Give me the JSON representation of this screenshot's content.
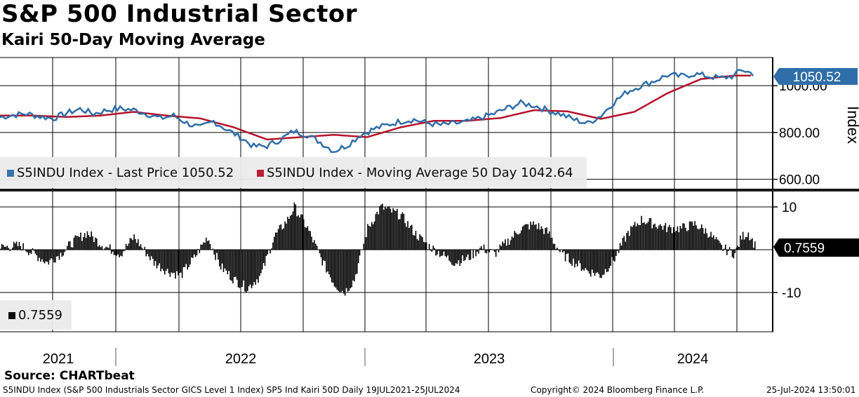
{
  "title": "S&P 500 Industrial Sector",
  "subtitle": "Kairi 50-Day Moving Average",
  "source": "Source: CHARTbeat",
  "footer": {
    "left": "S5INDU Index (S&P 500 Industrials Sector GICS Level 1 Index) SP5 Ind Kairi 50D  Daily 19JUL2021-25JUL2024",
    "center": "Copyright© 2024 Bloomberg Finance L.P.",
    "right": "25-Jul-2024 13:50:01"
  },
  "colors": {
    "price": "#2f6ea8",
    "ma": "#b5122b",
    "kairi": "#000000",
    "grid": "#000000"
  },
  "chart_data": [
    {
      "type": "line",
      "title": "S&P 500 Industrial Sector",
      "ylabel": "Index",
      "ylim": [
        560,
        1120
      ],
      "yticks": [
        600,
        800,
        1000
      ],
      "ytick_labels": [
        "600.00",
        "800.00",
        "1000.00"
      ],
      "x_labels": [
        "2021",
        "2022",
        "2023",
        "2024"
      ],
      "x_range": [
        "19JUL2021",
        "25JUL2024"
      ],
      "series": [
        {
          "name": "S5INDU Index - Last Price",
          "legend": "S5INDU Index - Last Price 1050.52",
          "last": "1050.52",
          "points": [
            [
              0,
              865
            ],
            [
              0.2,
              875
            ],
            [
              0.4,
              880
            ],
            [
              0.6,
              868
            ],
            [
              0.8,
              860
            ],
            [
              1.0,
              883
            ],
            [
              1.2,
              900
            ],
            [
              1.4,
              880
            ],
            [
              1.6,
              895
            ],
            [
              1.8,
              902
            ],
            [
              2.0,
              896
            ],
            [
              2.2,
              880
            ],
            [
              2.4,
              860
            ],
            [
              2.6,
              872
            ],
            [
              2.8,
              840
            ],
            [
              3.0,
              820
            ],
            [
              3.2,
              848
            ],
            [
              3.4,
              812
            ],
            [
              3.6,
              780
            ],
            [
              3.8,
              740
            ],
            [
              4.0,
              742
            ],
            [
              4.2,
              770
            ],
            [
              4.4,
              805
            ],
            [
              4.6,
              790
            ],
            [
              4.8,
              758
            ],
            [
              5.0,
              720
            ],
            [
              5.2,
              745
            ],
            [
              5.4,
              790
            ],
            [
              5.6,
              815
            ],
            [
              5.8,
              832
            ],
            [
              6.0,
              848
            ],
            [
              6.2,
              855
            ],
            [
              6.4,
              840
            ],
            [
              6.6,
              832
            ],
            [
              6.8,
              838
            ],
            [
              7.0,
              845
            ],
            [
              7.2,
              862
            ],
            [
              7.4,
              880
            ],
            [
              7.6,
              904
            ],
            [
              7.8,
              925
            ],
            [
              8.0,
              915
            ],
            [
              8.2,
              895
            ],
            [
              8.4,
              878
            ],
            [
              8.6,
              855
            ],
            [
              8.8,
              838
            ],
            [
              9.0,
              872
            ],
            [
              9.2,
              930
            ],
            [
              9.4,
              975
            ],
            [
              9.6,
              1000
            ],
            [
              9.8,
              1020
            ],
            [
              10.0,
              1045
            ],
            [
              10.2,
              1040
            ],
            [
              10.4,
              1050
            ],
            [
              10.6,
              1040
            ],
            [
              10.8,
              1032
            ],
            [
              11.0,
              1042
            ],
            [
              11.1,
              1070
            ],
            [
              11.2,
              1058
            ],
            [
              11.3,
              1050
            ]
          ]
        },
        {
          "name": "S5INDU Index - Moving Average 50 Day",
          "legend": "S5INDU Index - Moving Average 50 Day 1042.64",
          "last": "1042.64",
          "points": [
            [
              0,
              872
            ],
            [
              0.5,
              872
            ],
            [
              1.0,
              866
            ],
            [
              1.5,
              872
            ],
            [
              2.0,
              888
            ],
            [
              2.5,
              872
            ],
            [
              3.0,
              860
            ],
            [
              3.5,
              822
            ],
            [
              4.0,
              770
            ],
            [
              4.5,
              780
            ],
            [
              5.0,
              790
            ],
            [
              5.5,
              780
            ],
            [
              6.0,
              822
            ],
            [
              6.5,
              850
            ],
            [
              7.0,
              850
            ],
            [
              7.5,
              862
            ],
            [
              8.0,
              895
            ],
            [
              8.5,
              890
            ],
            [
              9.0,
              858
            ],
            [
              9.5,
              888
            ],
            [
              10.0,
              968
            ],
            [
              10.5,
              1028
            ],
            [
              11.0,
              1043
            ],
            [
              11.3,
              1043
            ]
          ]
        }
      ]
    },
    {
      "type": "bar",
      "title": "Kairi 50-Day Moving Average",
      "ylim": [
        -19,
        13
      ],
      "yticks": [
        10,
        -10
      ],
      "ytick_labels": [
        "10",
        "-10"
      ],
      "legend": "0.7559",
      "last": "0.7559",
      "points": [
        [
          0,
          0.5
        ],
        [
          0.3,
          1
        ],
        [
          0.5,
          -1
        ],
        [
          0.7,
          -3
        ],
        [
          0.9,
          -1
        ],
        [
          1.1,
          2
        ],
        [
          1.3,
          4
        ],
        [
          1.45,
          2
        ],
        [
          1.6,
          0.5
        ],
        [
          1.8,
          -1
        ],
        [
          2.0,
          3
        ],
        [
          2.1,
          1
        ],
        [
          2.3,
          -3
        ],
        [
          2.5,
          -5
        ],
        [
          2.7,
          -6
        ],
        [
          2.9,
          -2
        ],
        [
          3.1,
          3
        ],
        [
          3.3,
          -4
        ],
        [
          3.5,
          -7
        ],
        [
          3.7,
          -9
        ],
        [
          3.9,
          -6
        ],
        [
          4.1,
          3
        ],
        [
          4.3,
          7
        ],
        [
          4.4,
          10
        ],
        [
          4.6,
          5
        ],
        [
          4.8,
          -2
        ],
        [
          5.0,
          -8
        ],
        [
          5.15,
          -10
        ],
        [
          5.3,
          -7
        ],
        [
          5.5,
          5
        ],
        [
          5.7,
          10
        ],
        [
          5.85,
          9
        ],
        [
          6.0,
          8
        ],
        [
          6.2,
          4
        ],
        [
          6.4,
          1
        ],
        [
          6.6,
          -1
        ],
        [
          6.8,
          -3
        ],
        [
          7.0,
          -2
        ],
        [
          7.2,
          0.5
        ],
        [
          7.4,
          -1
        ],
        [
          7.6,
          2
        ],
        [
          7.8,
          5
        ],
        [
          8.0,
          6
        ],
        [
          8.2,
          4
        ],
        [
          8.4,
          -1
        ],
        [
          8.6,
          -3
        ],
        [
          8.8,
          -5
        ],
        [
          9.0,
          -6
        ],
        [
          9.2,
          -2
        ],
        [
          9.4,
          4
        ],
        [
          9.6,
          7
        ],
        [
          9.8,
          6
        ],
        [
          10.0,
          5
        ],
        [
          10.2,
          5
        ],
        [
          10.4,
          6
        ],
        [
          10.6,
          4
        ],
        [
          10.8,
          0.5
        ],
        [
          11.0,
          -1
        ],
        [
          11.1,
          3
        ],
        [
          11.2,
          4
        ],
        [
          11.3,
          1
        ]
      ]
    }
  ]
}
